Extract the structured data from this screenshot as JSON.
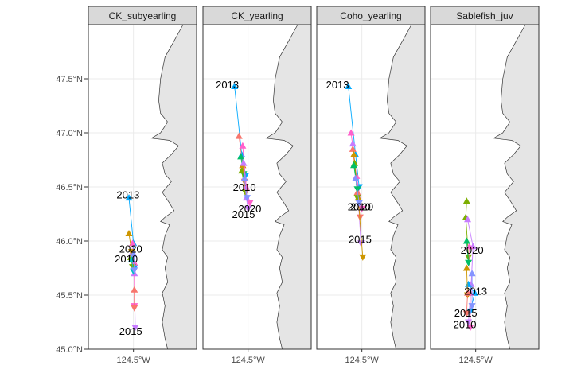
{
  "chart_data": {
    "type": "scatter",
    "facets": [
      "CK_subyearling",
      "CK_yearling",
      "Coho_yearling",
      "Sablefish_juv"
    ],
    "y_ticks": [
      "45.0°N",
      "45.5°N",
      "46.0°N",
      "46.5°N",
      "47.0°N",
      "47.5°N"
    ],
    "x_tick": "124.5°W",
    "ylim": [
      45.0,
      48.0
    ],
    "xlim": [
      -125.0,
      -123.8
    ],
    "grid": true,
    "colors": {
      "2013": "#00a9ff",
      "2015": "#c77cff",
      "2010": "#7cae00",
      "2020": "#ff61cc",
      "other": [
        "#f8766d",
        "#cd9600",
        "#00be67",
        "#00bfc4",
        "#8494ff"
      ]
    },
    "panels": [
      {
        "name": "CK_subyearling",
        "labels": [
          {
            "text": "2013",
            "lon": -124.56,
            "lat": 46.43
          },
          {
            "text": "2020",
            "lon": -124.53,
            "lat": 45.93
          },
          {
            "text": "2010",
            "lon": -124.58,
            "lat": 45.84
          },
          {
            "text": "2015",
            "lon": -124.53,
            "lat": 45.17
          }
        ],
        "tracks": [
          {
            "color": "#00a9ff",
            "points": [
              [
                -124.55,
                46.4
              ],
              [
                -124.5,
                45.98
              ],
              [
                -124.49,
                45.75
              ]
            ]
          },
          {
            "color": "#c77cff",
            "points": [
              [
                -124.51,
                45.9
              ],
              [
                -124.49,
                45.7
              ],
              [
                -124.48,
                45.2
              ]
            ]
          },
          {
            "color": "#ff61cc",
            "points": [
              [
                -124.51,
                45.98
              ],
              [
                -124.49,
                45.8
              ],
              [
                -124.49,
                45.4
              ]
            ]
          },
          {
            "color": "#7cae00",
            "points": [
              [
                -124.53,
                45.85
              ],
              [
                -124.51,
                45.76
              ]
            ]
          },
          {
            "color": "#cd9600",
            "points": [
              [
                -124.55,
                46.07
              ],
              [
                -124.52,
                45.9
              ]
            ]
          },
          {
            "color": "#00bfc4",
            "points": [
              [
                -124.52,
                45.83
              ],
              [
                -124.5,
                45.72
              ]
            ]
          },
          {
            "color": "#f8766d",
            "points": [
              [
                -124.49,
                45.55
              ],
              [
                -124.49,
                45.38
              ]
            ]
          },
          {
            "color": "#8494ff",
            "points": [
              [
                -124.5,
                45.88
              ],
              [
                -124.49,
                45.73
              ]
            ]
          }
        ]
      },
      {
        "name": "CK_yearling",
        "labels": [
          {
            "text": "2013",
            "lon": -124.73,
            "lat": 47.45
          },
          {
            "text": "2010",
            "lon": -124.54,
            "lat": 46.5
          },
          {
            "text": "2020",
            "lon": -124.48,
            "lat": 46.3
          },
          {
            "text": "2015",
            "lon": -124.55,
            "lat": 46.25
          }
        ],
        "tracks": [
          {
            "color": "#00a9ff",
            "points": [
              [
                -124.65,
                47.43
              ],
              [
                -124.57,
                46.8
              ],
              [
                -124.53,
                46.6
              ]
            ]
          },
          {
            "color": "#f8766d",
            "points": [
              [
                -124.6,
                46.97
              ],
              [
                -124.56,
                46.7
              ],
              [
                -124.54,
                46.55
              ]
            ]
          },
          {
            "color": "#00be67",
            "points": [
              [
                -124.58,
                46.78
              ],
              [
                -124.55,
                46.62
              ]
            ]
          },
          {
            "color": "#7cae00",
            "points": [
              [
                -124.57,
                46.65
              ],
              [
                -124.53,
                46.45
              ]
            ]
          },
          {
            "color": "#cd9600",
            "points": [
              [
                -124.56,
                46.7
              ],
              [
                -124.53,
                46.5
              ]
            ]
          },
          {
            "color": "#ff61cc",
            "points": [
              [
                -124.56,
                46.88
              ],
              [
                -124.52,
                46.5
              ],
              [
                -124.48,
                46.35
              ]
            ]
          },
          {
            "color": "#c77cff",
            "points": [
              [
                -124.55,
                46.72
              ],
              [
                -124.52,
                46.4
              ],
              [
                -124.5,
                46.3
              ]
            ]
          },
          {
            "color": "#8494ff",
            "points": [
              [
                -124.54,
                46.58
              ],
              [
                -124.51,
                46.4
              ]
            ]
          }
        ]
      },
      {
        "name": "Coho_yearling",
        "labels": [
          {
            "text": "2013",
            "lon": -124.77,
            "lat": 47.45
          },
          {
            "text": "2010",
            "lon": -124.53,
            "lat": 46.32
          },
          {
            "text": "2020",
            "lon": -124.5,
            "lat": 46.32
          },
          {
            "text": "2015",
            "lon": -124.52,
            "lat": 46.02
          }
        ],
        "tracks": [
          {
            "color": "#00a9ff",
            "points": [
              [
                -124.65,
                47.43
              ],
              [
                -124.57,
                46.8
              ],
              [
                -124.53,
                46.5
              ]
            ]
          },
          {
            "color": "#ff61cc",
            "points": [
              [
                -124.62,
                47.0
              ],
              [
                -124.56,
                46.6
              ],
              [
                -124.5,
                46.3
              ]
            ]
          },
          {
            "color": "#c77cff",
            "points": [
              [
                -124.6,
                46.9
              ],
              [
                -124.54,
                46.4
              ],
              [
                -124.51,
                45.98
              ]
            ]
          },
          {
            "color": "#f8766d",
            "points": [
              [
                -124.6,
                46.85
              ],
              [
                -124.55,
                46.45
              ],
              [
                -124.52,
                46.22
              ]
            ]
          },
          {
            "color": "#cd9600",
            "points": [
              [
                -124.59,
                46.8
              ],
              [
                -124.54,
                46.4
              ],
              [
                -124.49,
                45.85
              ]
            ]
          },
          {
            "color": "#7cae00",
            "points": [
              [
                -124.58,
                46.72
              ],
              [
                -124.55,
                46.4
              ]
            ]
          },
          {
            "color": "#00be67",
            "points": [
              [
                -124.59,
                46.7
              ],
              [
                -124.55,
                46.48
              ]
            ]
          },
          {
            "color": "#8494ff",
            "points": [
              [
                -124.57,
                46.58
              ],
              [
                -124.53,
                46.35
              ]
            ]
          }
        ]
      },
      {
        "name": "Sablefish_juv",
        "labels": [
          {
            "text": "2020",
            "lon": -124.54,
            "lat": 45.92
          },
          {
            "text": "2013",
            "lon": -124.5,
            "lat": 45.54
          },
          {
            "text": "2015",
            "lon": -124.61,
            "lat": 45.34
          },
          {
            "text": "2010",
            "lon": -124.62,
            "lat": 45.23
          }
        ],
        "tracks": [
          {
            "color": "#7cae00",
            "points": [
              [
                -124.6,
                46.37
              ],
              [
                -124.61,
                46.22
              ],
              [
                -124.58,
                45.85
              ]
            ]
          },
          {
            "color": "#c77cff",
            "points": [
              [
                -124.59,
                46.2
              ],
              [
                -124.53,
                45.95
              ],
              [
                -124.55,
                45.6
              ],
              [
                -124.58,
                45.25
              ]
            ]
          },
          {
            "color": "#00a9ff",
            "points": [
              [
                -124.58,
                45.6
              ],
              [
                -124.51,
                45.52
              ],
              [
                -124.56,
                45.35
              ]
            ]
          },
          {
            "color": "#ff61cc",
            "points": [
              [
                -124.57,
                45.95
              ],
              [
                -124.56,
                45.52
              ],
              [
                -124.56,
                45.2
              ]
            ]
          },
          {
            "color": "#cd9600",
            "points": [
              [
                -124.6,
                45.75
              ],
              [
                -124.59,
                45.5
              ]
            ]
          },
          {
            "color": "#f8766d",
            "points": [
              [
                -124.59,
                45.52
              ],
              [
                -124.6,
                45.33
              ]
            ]
          },
          {
            "color": "#8494ff",
            "points": [
              [
                -124.54,
                45.7
              ],
              [
                -124.54,
                45.4
              ]
            ]
          },
          {
            "color": "#00be67",
            "points": [
              [
                -124.6,
                46.0
              ],
              [
                -124.58,
                45.8
              ]
            ]
          }
        ]
      }
    ]
  }
}
